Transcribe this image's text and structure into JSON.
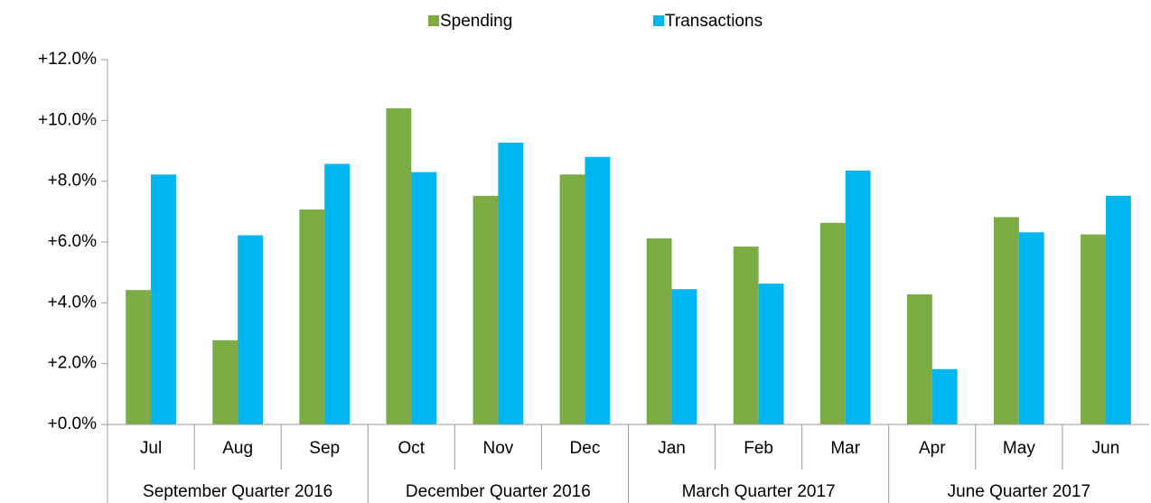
{
  "chart_data": {
    "type": "bar",
    "categories": [
      "Jul",
      "Aug",
      "Sep",
      "Oct",
      "Nov",
      "Dec",
      "Jan",
      "Feb",
      "Mar",
      "Apr",
      "May",
      "Jun"
    ],
    "groups": [
      "September Quarter 2016",
      "December Quarter 2016",
      "March Quarter 2017",
      "June Quarter 2017"
    ],
    "series": [
      {
        "name": "Spending",
        "color": "#7cac44",
        "values": [
          4.42,
          2.77,
          7.07,
          10.4,
          7.52,
          8.22,
          6.12,
          5.85,
          6.63,
          4.28,
          6.82,
          6.25
        ]
      },
      {
        "name": "Transactions",
        "color": "#00b6f0",
        "values": [
          8.22,
          6.22,
          8.57,
          8.3,
          9.27,
          8.8,
          4.45,
          4.63,
          8.35,
          1.82,
          6.32,
          7.52
        ]
      }
    ],
    "ylim": [
      0,
      12
    ],
    "yticks": [
      {
        "value": 0,
        "label": "+0.0%"
      },
      {
        "value": 2,
        "label": "+2.0%"
      },
      {
        "value": 4,
        "label": "+4.0%"
      },
      {
        "value": 6,
        "label": "+6.0%"
      },
      {
        "value": 8,
        "label": "+8.0%"
      },
      {
        "value": 10,
        "label": "+10.0%"
      },
      {
        "value": 12,
        "label": "+12.0%"
      }
    ],
    "grid": false,
    "legend": "top"
  }
}
